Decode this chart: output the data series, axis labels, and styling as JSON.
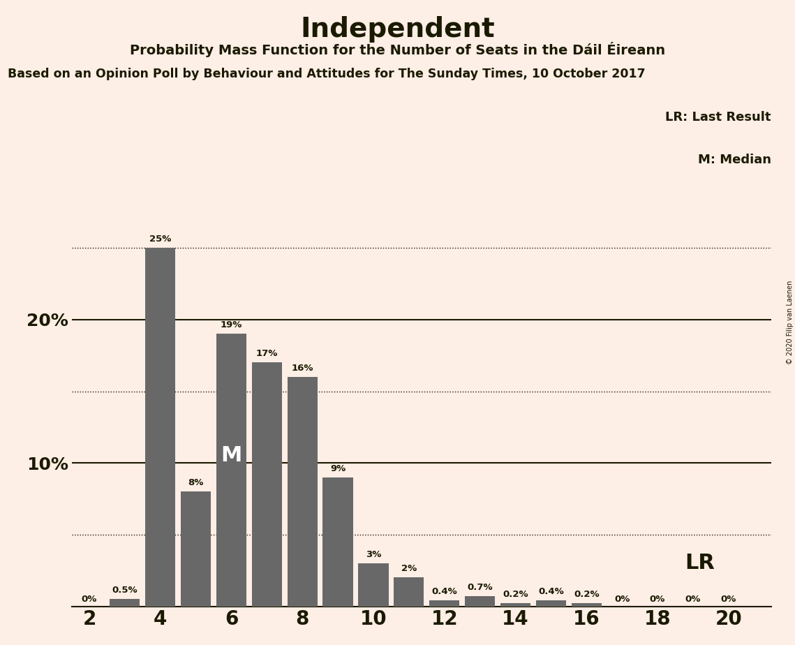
{
  "title": "Independent",
  "subtitle": "Probability Mass Function for the Number of Seats in the Dáil Éireann",
  "source_line": "Based on an Opinion Poll by Behaviour and Attitudes for The Sunday Times, 10 October 2017",
  "copyright": "© 2020 Filip van Laenen",
  "categories": [
    2,
    3,
    4,
    5,
    6,
    7,
    8,
    9,
    10,
    11,
    12,
    13,
    14,
    15,
    16,
    17,
    18,
    19,
    20
  ],
  "values": [
    0.0,
    0.5,
    25.0,
    8.0,
    19.0,
    17.0,
    16.0,
    9.0,
    3.0,
    2.0,
    0.4,
    0.7,
    0.2,
    0.4,
    0.2,
    0.0,
    0.0,
    0.0,
    0.0
  ],
  "bar_labels": [
    "0%",
    "0.5%",
    "25%",
    "8%",
    "19%",
    "17%",
    "16%",
    "9%",
    "3%",
    "2%",
    "0.4%",
    "0.7%",
    "0.2%",
    "0.4%",
    "0.2%",
    "0%",
    "0%",
    "0%",
    "0%"
  ],
  "bar_color": "#686868",
  "background_color": "#fdeee6",
  "title_color": "#1a1a00",
  "text_color": "#1a1a00",
  "ylim": [
    0,
    27
  ],
  "solid_lines": [
    10.0,
    20.0
  ],
  "dotted_lines": [
    5.0,
    15.0,
    25.0
  ],
  "lr_label": "LR",
  "lr_legend": "LR: Last Result",
  "median_legend": "M: Median",
  "median_label": "M",
  "median_bar_index": 4,
  "xtick_positions": [
    2,
    4,
    6,
    8,
    10,
    12,
    14,
    16,
    18,
    20
  ],
  "xtick_labels": [
    "2",
    "4",
    "6",
    "8",
    "10",
    "12",
    "14",
    "16",
    "18",
    "20"
  ],
  "ytick_positions": [
    10,
    20
  ],
  "ytick_labels": [
    "10%",
    "20%"
  ]
}
